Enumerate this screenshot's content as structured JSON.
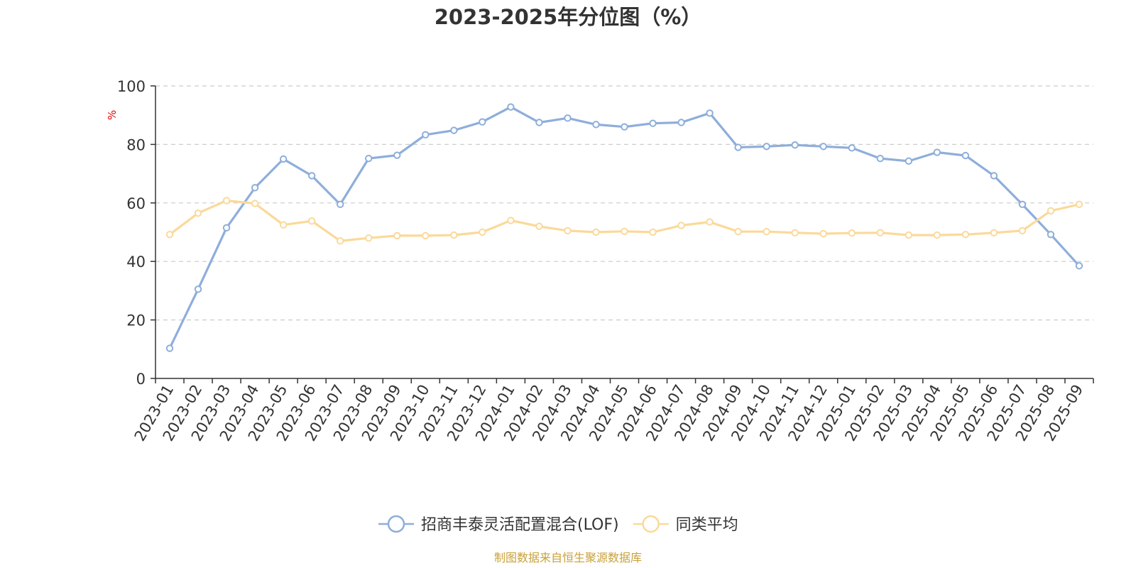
{
  "chart_data": {
    "type": "line",
    "title": "2023-2025年分位图（%）",
    "ylabel": "%",
    "ylim": [
      0,
      100
    ],
    "yticks": [
      "0",
      "20",
      "40",
      "60",
      "80",
      "100"
    ],
    "grid": true,
    "legend_position": "bottom",
    "categories": [
      "2023-01",
      "2023-02",
      "2023-03",
      "2023-04",
      "2023-05",
      "2023-06",
      "2023-07",
      "2023-08",
      "2023-09",
      "2023-10",
      "2023-11",
      "2023-12",
      "2024-01",
      "2024-02",
      "2024-03",
      "2024-04",
      "2024-05",
      "2024-06",
      "2024-07",
      "2024-08",
      "2024-09",
      "2024-10",
      "2024-11",
      "2024-12",
      "2025-01",
      "2025-02",
      "2025-03",
      "2025-04",
      "2025-05",
      "2025-06",
      "2025-07",
      "2025-08",
      "2025-09"
    ],
    "series": [
      {
        "name": "招商丰泰灵活配置混合(LOF)",
        "color": "#8eaedb",
        "values": [
          10.3,
          30.5,
          51.5,
          65.2,
          75.0,
          69.3,
          59.5,
          75.2,
          76.3,
          83.3,
          84.8,
          87.7,
          92.8,
          87.5,
          89.0,
          86.8,
          86.0,
          87.2,
          87.5,
          90.7,
          79.0,
          79.3,
          79.8,
          79.3,
          78.8,
          75.2,
          74.3,
          77.3,
          76.2,
          69.3,
          59.5,
          49.2,
          38.5
        ]
      },
      {
        "name": "同类平均",
        "color": "#fbd99a",
        "values": [
          49.2,
          56.5,
          60.8,
          59.8,
          52.5,
          53.8,
          47.0,
          48.0,
          48.8,
          48.8,
          49.0,
          50.0,
          54.0,
          52.0,
          50.5,
          50.0,
          50.3,
          50.0,
          52.3,
          53.5,
          50.2,
          50.2,
          49.8,
          49.5,
          49.7,
          49.8,
          49.0,
          49.0,
          49.2,
          49.8,
          50.5,
          57.3,
          59.5
        ]
      }
    ],
    "source_note": "制图数据来自恒生聚源数据库",
    "source_color": "#c9a13b",
    "ylabel_color": "#e60000"
  }
}
